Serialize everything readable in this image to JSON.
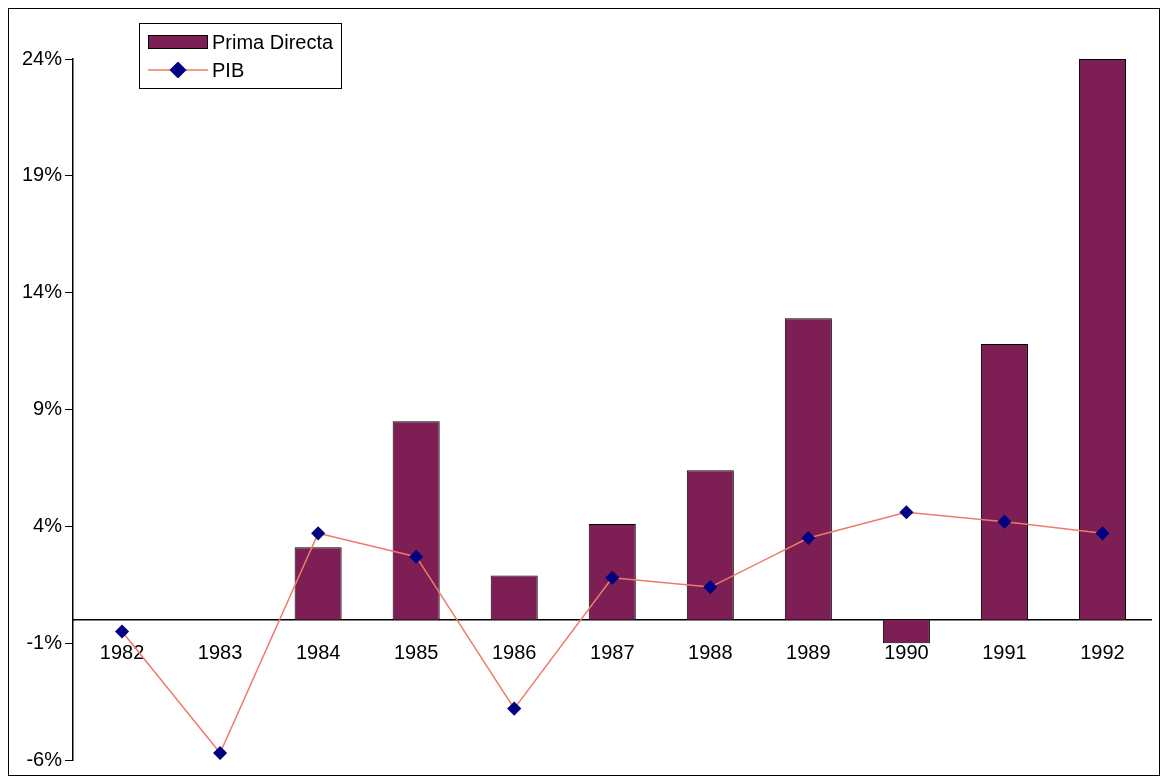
{
  "chart_data": {
    "type": "bar",
    "categories": [
      "1982",
      "1983",
      "1984",
      "1985",
      "1986",
      "1987",
      "1988",
      "1989",
      "1990",
      "1991",
      "1992"
    ],
    "series": [
      {
        "name": "Prima Directa",
        "color": "#7d1f55",
        "values": [
          null,
          null,
          3.1,
          8.5,
          1.9,
          4.1,
          6.4,
          12.9,
          -1.0,
          11.8,
          24.0
        ]
      },
      {
        "name": "PIB",
        "type": "line",
        "color": "#f07a6a",
        "marker": "diamond",
        "values": [
          -0.5,
          -5.7,
          3.7,
          2.7,
          -3.8,
          1.8,
          1.4,
          3.5,
          4.6,
          4.2,
          3.7
        ]
      }
    ],
    "ylim": [
      -6,
      24
    ],
    "yticks": [
      {
        "value": -6,
        "label": "-6%"
      },
      {
        "value": -1,
        "label": "-1%"
      },
      {
        "value": 4,
        "label": "4%"
      },
      {
        "value": 9,
        "label": "9%"
      },
      {
        "value": 14,
        "label": "14%"
      },
      {
        "value": 19,
        "label": "19%"
      },
      {
        "value": 24,
        "label": "24%"
      }
    ],
    "grid": false,
    "legend": "top left"
  }
}
